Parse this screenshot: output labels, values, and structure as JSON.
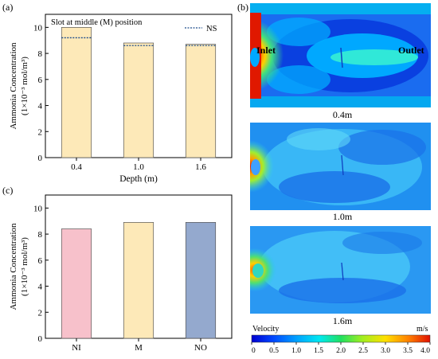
{
  "panels": {
    "a": {
      "label": "(a)",
      "legend_title": "Slot at middle (M) position",
      "legend_ns": "NS",
      "ylabel_line1": "Ammonia Concentration",
      "ylabel_line2": "(1×10⁻³ mol/m³)",
      "xlabel": "Depth (m)"
    },
    "b": {
      "label": "(b)",
      "inlet_label": "Inlet",
      "outlet_label": "Outlet",
      "captions": [
        "0.4m",
        "1.0m",
        "1.6m"
      ],
      "colorbar_title": "Velocity",
      "colorbar_unit": "m/s",
      "colorbar_ticks": [
        "0",
        "0.5",
        "1.0",
        "1.5",
        "2.0",
        "2.5",
        "3.0",
        "3.5",
        "4.0"
      ]
    },
    "c": {
      "label": "(c)",
      "ylabel_line1": "Ammonia Concentration",
      "ylabel_line2": "(1×10⁻³ mol/m³)"
    }
  },
  "chart_data": [
    {
      "type": "bar",
      "panel": "a",
      "categories": [
        "0.4",
        "1.0",
        "1.6"
      ],
      "values": [
        10.0,
        8.8,
        8.7
      ],
      "ns_values": [
        9.2,
        8.6,
        8.6
      ],
      "ylim": [
        0,
        11
      ],
      "yticks": [
        "0",
        "2",
        "4",
        "6",
        "8",
        "10"
      ],
      "colors": {
        "bar": "#fde9b8",
        "ns": "#1f4e8c"
      }
    },
    {
      "type": "bar",
      "panel": "c",
      "categories": [
        "NI",
        "M",
        "NO"
      ],
      "values": [
        8.4,
        8.9,
        8.9
      ],
      "ylim": [
        0,
        11
      ],
      "yticks": [
        "0",
        "2",
        "4",
        "6",
        "8",
        "10"
      ],
      "colors": {
        "bars": [
          "#f7c1cb",
          "#fde9b8",
          "#94a9ce"
        ]
      }
    }
  ]
}
